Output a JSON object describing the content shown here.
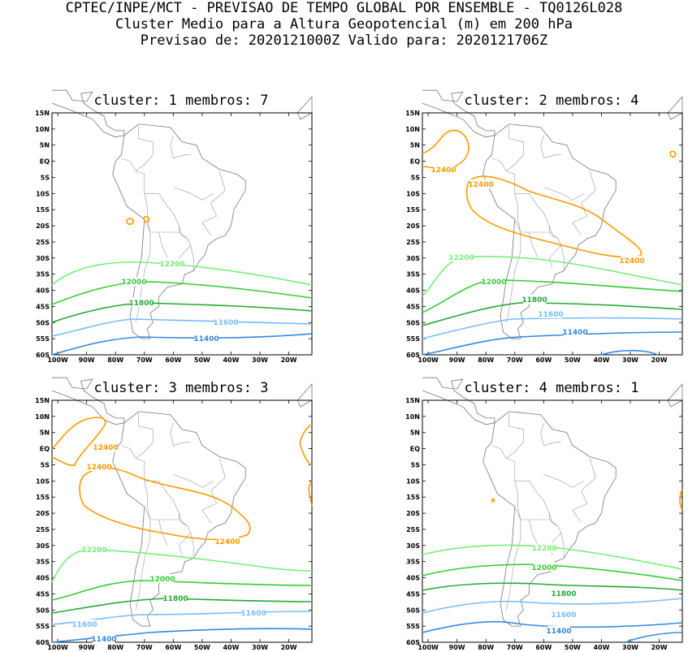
{
  "header": {
    "line1": "CPTEC/INPE/MCT - PREVISAO DE TEMPO GLOBAL POR ENSEMBLE - TQ0126L028",
    "line2": "Cluster Medio para a Altura Geopotencial (m) em 200 hPa",
    "line3": "Previsao de: 2020121000Z   Valido para: 2020121706Z"
  },
  "axes": {
    "lat_ticks": [
      "15N",
      "10N",
      "5N",
      "EQ",
      "5S",
      "10S",
      "15S",
      "20S",
      "25S",
      "30S",
      "35S",
      "40S",
      "45S",
      "50S",
      "55S",
      "60S"
    ],
    "lon_ticks": [
      "100W",
      "90W",
      "80W",
      "70W",
      "60W",
      "50W",
      "40W",
      "30W",
      "20W"
    ]
  },
  "contour_colors": {
    "12400": "#ff9900",
    "12200": "#77ee77",
    "12000": "#33cc33",
    "11800": "#22aa33",
    "11600": "#77bbff",
    "11400": "#3388dd"
  },
  "panels": [
    {
      "title": "cluster:  1   membros:  7",
      "labels": [
        "12200",
        "12000",
        "11800",
        "11600",
        "11400"
      ]
    },
    {
      "title": "cluster:  2   membros:  4",
      "labels": [
        "12400",
        "12400",
        "12400",
        "12200",
        "12000",
        "11800",
        "11600",
        "11400"
      ]
    },
    {
      "title": "cluster:  3   membros:  3",
      "labels": [
        "12400",
        "12400",
        "12400",
        "12200",
        "12000",
        "11800",
        "11600",
        "11600",
        "11400"
      ]
    },
    {
      "title": "cluster:  4   membros:  1",
      "labels": [
        "12200",
        "12000",
        "11800",
        "11600",
        "11400"
      ]
    }
  ]
}
